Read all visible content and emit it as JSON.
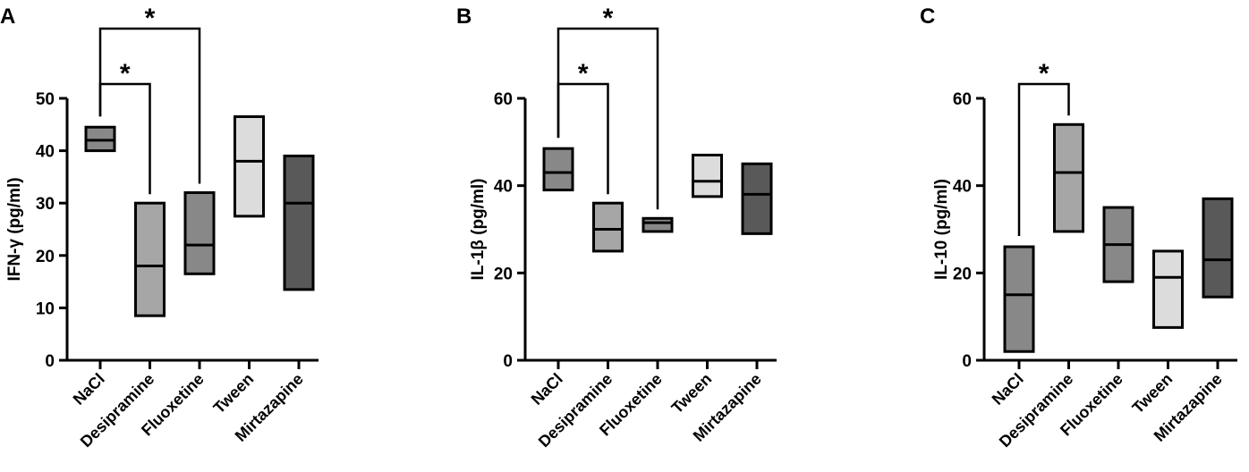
{
  "chart_data": [
    {
      "type": "box",
      "panel": "A",
      "ylabel": "IFN-γ (pg/ml)",
      "ylim": [
        0,
        50
      ],
      "yticks": [
        0,
        10,
        20,
        30,
        40,
        50
      ],
      "categories": [
        "NaCl",
        "Desipramine",
        "Fluoxetine",
        "Tween",
        "Mirtazapine"
      ],
      "boxes": [
        {
          "low": 40,
          "median": 42,
          "high": 44.5,
          "color": "#888888"
        },
        {
          "low": 8.5,
          "median": 18,
          "high": 30,
          "color": "#a6a6a6"
        },
        {
          "low": 16.5,
          "median": 22,
          "high": 32,
          "color": "#888888"
        },
        {
          "low": 27.5,
          "median": 38,
          "high": 46.5,
          "color": "#dcdcdc"
        },
        {
          "low": 13.5,
          "median": 30,
          "high": 39,
          "color": "#595959"
        }
      ],
      "significance": [
        {
          "from": 0,
          "to": 1,
          "label": "*"
        },
        {
          "from": 0,
          "to": 2,
          "label": "*"
        }
      ]
    },
    {
      "type": "box",
      "panel": "B",
      "ylabel": "IL-1β (pg/ml)",
      "ylim": [
        0,
        60
      ],
      "yticks": [
        0,
        20,
        40,
        60
      ],
      "categories": [
        "NaCl",
        "Desipramine",
        "Fluoxetine",
        "Tween",
        "Mirtazapine"
      ],
      "boxes": [
        {
          "low": 39,
          "median": 43,
          "high": 48.5,
          "color": "#888888"
        },
        {
          "low": 25,
          "median": 30,
          "high": 36,
          "color": "#a6a6a6"
        },
        {
          "low": 29.5,
          "median": 31.5,
          "high": 32.5,
          "color": "#888888"
        },
        {
          "low": 37.5,
          "median": 41,
          "high": 47,
          "color": "#dcdcdc"
        },
        {
          "low": 29,
          "median": 38,
          "high": 45,
          "color": "#595959"
        }
      ],
      "significance": [
        {
          "from": 0,
          "to": 1,
          "label": "*"
        },
        {
          "from": 0,
          "to": 2,
          "label": "*"
        }
      ]
    },
    {
      "type": "box",
      "panel": "C",
      "ylabel": "IL-10 (pg/ml)",
      "ylim": [
        0,
        60
      ],
      "yticks": [
        0,
        20,
        40,
        60
      ],
      "categories": [
        "NaCl",
        "Desipramine",
        "Fluoxetine",
        "Tween",
        "Mirtazapine"
      ],
      "boxes": [
        {
          "low": 2,
          "median": 15,
          "high": 26,
          "color": "#888888"
        },
        {
          "low": 29.5,
          "median": 43,
          "high": 54,
          "color": "#a6a6a6"
        },
        {
          "low": 18,
          "median": 26.5,
          "high": 35,
          "color": "#888888"
        },
        {
          "low": 7.5,
          "median": 19,
          "high": 25,
          "color": "#dcdcdc"
        },
        {
          "low": 14.5,
          "median": 23,
          "high": 37,
          "color": "#595959"
        }
      ],
      "significance": [
        {
          "from": 0,
          "to": 1,
          "label": "*"
        }
      ]
    }
  ]
}
